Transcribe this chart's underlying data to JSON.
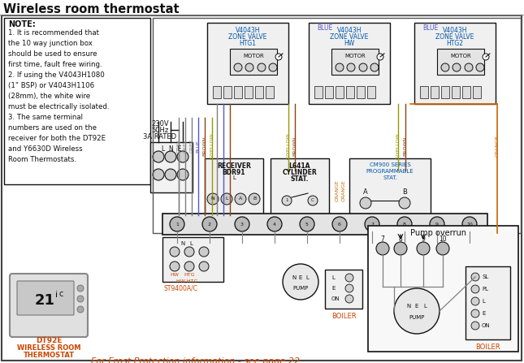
{
  "title": "Wireless room thermostat",
  "bg_color": "#ffffff",
  "wire_grey": "#808080",
  "wire_blue": "#5555cc",
  "wire_brown": "#8B4513",
  "wire_gyellow": "#999900",
  "wire_orange": "#cc6600",
  "wire_black": "#222222",
  "text_blue": "#0055aa",
  "text_orange": "#cc4400",
  "text_black": "#111111",
  "note_lines": [
    "NOTE:",
    "1. It is recommended that",
    "the 10 way junction box",
    "should be used to ensure",
    "first time, fault free wiring.",
    "2. If using the V4043H1080",
    "(1\" BSP) or V4043H1106",
    "(28mm), the white wire",
    "must be electrically isolated.",
    "3. The same terminal",
    "numbers are used on the",
    "receiver for both the DT92E",
    "and Y6630D Wireless",
    "Room Thermostats."
  ],
  "frost_text": "For Frost Protection information - see page 22"
}
